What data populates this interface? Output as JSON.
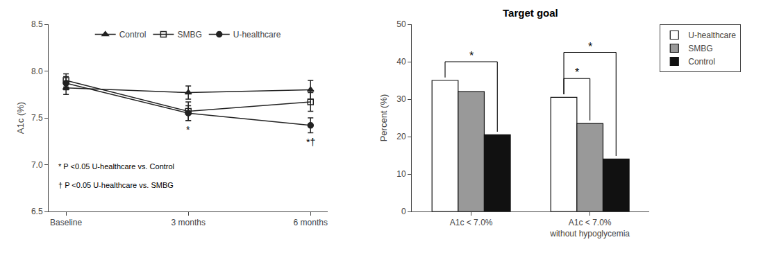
{
  "chart_data": [
    {
      "type": "line",
      "categories": [
        "Baseline",
        "3 months",
        "6 months"
      ],
      "ylabel": "A1c (%)",
      "series": [
        {
          "name": "Control",
          "color": "#222222",
          "marker": "triangle-up",
          "values": [
            7.82,
            7.77,
            7.8
          ],
          "errors": [
            0.07,
            0.07,
            0.1
          ]
        },
        {
          "name": "SMBG",
          "color": "#222222",
          "marker": "square-open",
          "values": [
            7.9,
            7.57,
            7.67
          ],
          "errors": [
            0.07,
            0.1,
            0.1
          ]
        },
        {
          "name": "U-healthcare",
          "color": "#222222",
          "marker": "circle",
          "values": [
            7.87,
            7.55,
            7.42
          ],
          "errors": [
            0.07,
            0.08,
            0.08
          ]
        }
      ],
      "ylim": [
        6.5,
        8.5
      ],
      "yticks": [
        6.5,
        {
          "value": 7.0,
          "label": "7.0"
        },
        7.5,
        {
          "value": 8.0,
          "label": "8.0"
        },
        8.5
      ],
      "grid": false,
      "legend": "upper center",
      "annotations": [
        {
          "text": "*",
          "category": "3 months",
          "series": "U-healthcare"
        },
        {
          "text": "*†",
          "category": "6 months",
          "series": "U-healthcare"
        },
        {
          "text": "* P <0.05 U-healthcare vs. Control"
        },
        {
          "text": "† P <0.05 U-healthcare vs. SMBG"
        }
      ]
    },
    {
      "type": "bar",
      "title": "Target goal",
      "categories": [
        "A1c < 7.0%",
        "A1c < 7.0%\nwithout hypoglycemia"
      ],
      "ylabel": "Percent (%)",
      "series": [
        {
          "name": "U-healthcare",
          "color": "#ffffff",
          "values": [
            35.0,
            30.5
          ]
        },
        {
          "name": "SMBG",
          "color": "#999999",
          "values": [
            32.0,
            23.5
          ]
        },
        {
          "name": "Control",
          "color": "#111111",
          "values": [
            20.5,
            14.0
          ]
        }
      ],
      "ylim": [
        0,
        50
      ],
      "yticks": [
        0,
        10,
        20,
        30,
        40,
        50
      ],
      "grid": false,
      "legend": "right",
      "annotations": [
        {
          "text": "*",
          "category": "A1c < 7.0%",
          "between": [
            "U-healthcare",
            "Control"
          ]
        },
        {
          "text": "*",
          "category": "A1c < 7.0%\nwithout hypoglycemia",
          "between": [
            "U-healthcare",
            "SMBG"
          ]
        },
        {
          "text": "*",
          "category": "A1c < 7.0%\nwithout hypoglycemia",
          "between": [
            "U-healthcare",
            "Control"
          ]
        }
      ]
    }
  ]
}
